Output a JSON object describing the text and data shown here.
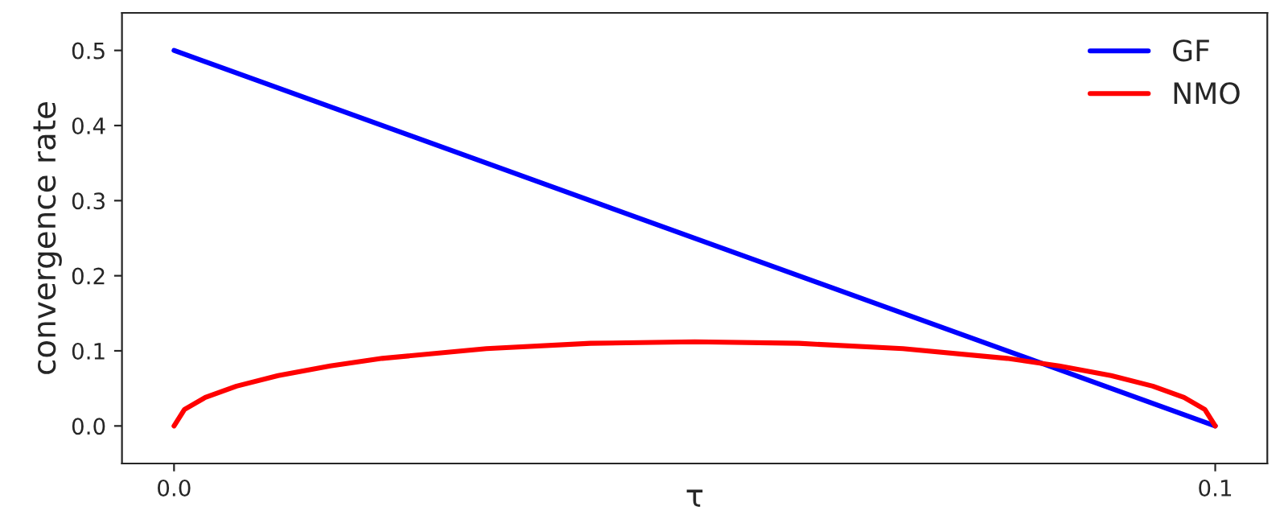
{
  "chart_data": {
    "type": "line",
    "xlabel": "τ",
    "ylabel": "convergence rate",
    "xlim": [
      -0.005,
      0.105
    ],
    "ylim": [
      -0.05,
      0.55
    ],
    "xticks": [
      {
        "value": 0,
        "label": "0.0"
      },
      {
        "value": 0.1,
        "label": "0.1"
      }
    ],
    "yticks": [
      {
        "value": 0,
        "label": "0.0"
      },
      0.1,
      0.2,
      0.3,
      0.4,
      0.5
    ],
    "grid": false,
    "legend": "top right",
    "marker": "none",
    "line_style": "solid",
    "series": [
      {
        "name": "GF",
        "color": "#0000ff",
        "x": [
          0,
          0.1
        ],
        "values": [
          0.5,
          0
        ]
      },
      {
        "name": "NMO",
        "color": "#ff0000",
        "x": [
          0,
          0.001,
          0.003,
          0.006,
          0.01,
          0.015,
          0.02,
          0.03,
          0.04,
          0.05,
          0.06,
          0.07,
          0.08,
          0.085,
          0.09,
          0.094,
          0.097,
          0.099,
          0.1
        ],
        "values": [
          0,
          0.022,
          0.038,
          0.053,
          0.067,
          0.08,
          0.09,
          0.103,
          0.11,
          0.112,
          0.11,
          0.103,
          0.09,
          0.08,
          0.067,
          0.053,
          0.038,
          0.022,
          0
        ]
      }
    ]
  }
}
